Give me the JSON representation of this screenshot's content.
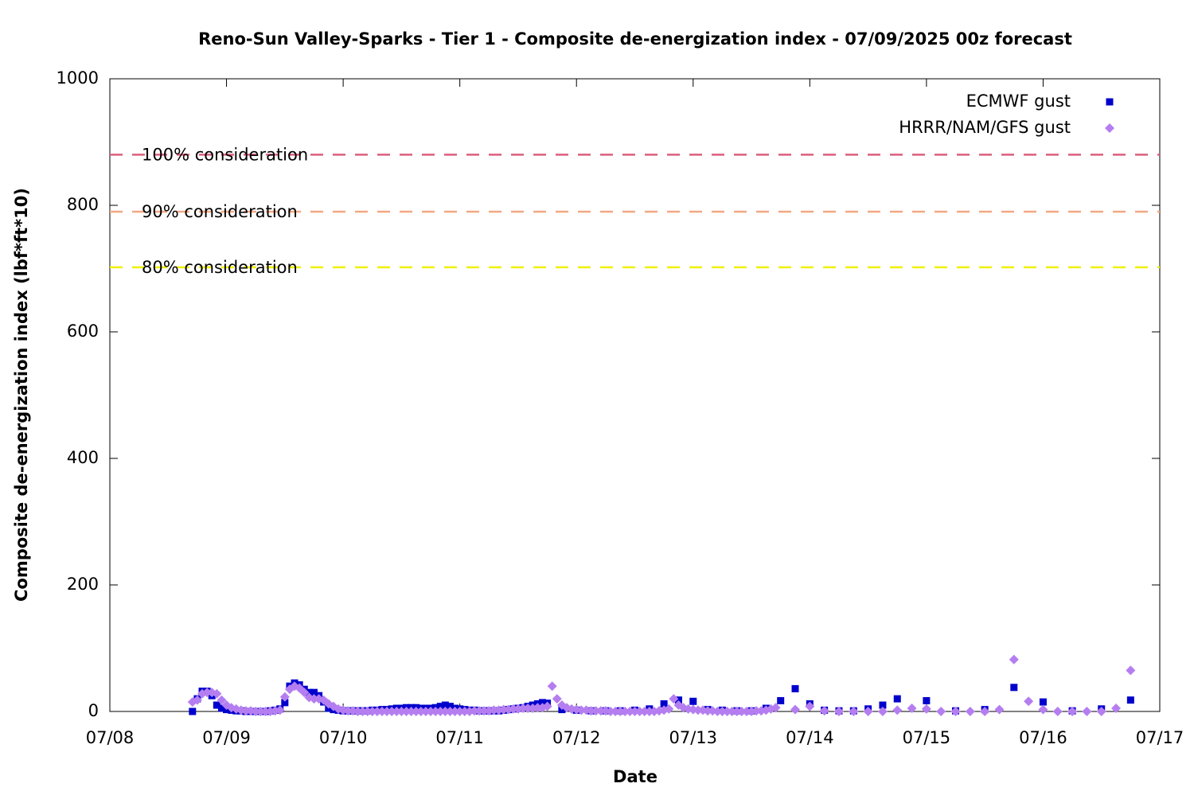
{
  "chart_data": {
    "type": "scatter",
    "title": "Reno-Sun Valley-Sparks - Tier 1 - Composite de-energization index - 07/09/2025 00z forecast",
    "x_label": "Date",
    "y_label": "Composite de-energization index (lbf*ft*10)",
    "xlim": [
      0,
      216
    ],
    "xticks": [
      {
        "value": 0,
        "label": "07/08"
      },
      {
        "value": 24,
        "label": "07/09"
      },
      {
        "value": 48,
        "label": "07/10"
      },
      {
        "value": 72,
        "label": "07/11"
      },
      {
        "value": 96,
        "label": "07/12"
      },
      {
        "value": 120,
        "label": "07/13"
      },
      {
        "value": 144,
        "label": "07/14"
      },
      {
        "value": 168,
        "label": "07/15"
      },
      {
        "value": 192,
        "label": "07/16"
      },
      {
        "value": 216,
        "label": "07/17"
      }
    ],
    "ylim": [
      0,
      1000
    ],
    "yticks": [
      0,
      200,
      400,
      600,
      800,
      1000
    ],
    "legend": "top-right",
    "thresholds": [
      {
        "label": "100% consideration",
        "value": 880,
        "color": "#dc5f7d"
      },
      {
        "label": "90% consideration",
        "value": 790,
        "color": "#f4a882"
      },
      {
        "label": "80% consideration",
        "value": 702,
        "color": "#f0f000"
      }
    ],
    "series": [
      {
        "name": "ECMWF gust",
        "color": "#0000cc",
        "marker": "square",
        "x": [
          17,
          18,
          19,
          20,
          21,
          22,
          23,
          24,
          25,
          26,
          27,
          28,
          29,
          30,
          31,
          32,
          33,
          34,
          35,
          36,
          37,
          38,
          39,
          40,
          41,
          42,
          43,
          44,
          45,
          46,
          47,
          48,
          49,
          50,
          51,
          52,
          53,
          54,
          55,
          56,
          57,
          58,
          59,
          60,
          61,
          62,
          63,
          64,
          65,
          66,
          67,
          68,
          69,
          70,
          71,
          72,
          73,
          74,
          75,
          76,
          77,
          78,
          79,
          80,
          81,
          82,
          83,
          84,
          85,
          86,
          87,
          88,
          89,
          90,
          93,
          96,
          99,
          102,
          105,
          108,
          111,
          114,
          117,
          120,
          123,
          126,
          129,
          132,
          135,
          138,
          141,
          144,
          147,
          150,
          153,
          156,
          159,
          162,
          168,
          174,
          180,
          186,
          192,
          198,
          204,
          210
        ],
        "values": [
          0,
          20,
          32,
          32,
          25,
          10,
          5,
          3,
          2,
          1,
          1,
          0,
          0,
          0,
          0,
          0,
          1,
          2,
          4,
          14,
          40,
          45,
          42,
          35,
          30,
          30,
          25,
          15,
          5,
          3,
          2,
          1,
          1,
          1,
          1,
          1,
          1,
          2,
          2,
          3,
          3,
          4,
          5,
          5,
          6,
          6,
          6,
          5,
          5,
          5,
          6,
          8,
          10,
          8,
          5,
          4,
          3,
          2,
          2,
          1,
          1,
          1,
          1,
          1,
          2,
          3,
          4,
          5,
          6,
          8,
          10,
          12,
          14,
          13,
          3,
          2,
          1,
          1,
          1,
          2,
          4,
          12,
          18,
          16,
          3,
          2,
          1,
          1,
          5,
          17,
          36,
          12,
          2,
          1,
          1,
          4,
          10,
          20,
          17,
          1,
          3,
          38,
          15,
          1,
          4,
          18
        ]
      },
      {
        "name": "HRRR/NAM/GFS gust",
        "color": "#b57ef0",
        "marker": "diamond",
        "x": [
          17,
          18,
          19,
          20,
          21,
          22,
          23,
          24,
          25,
          26,
          27,
          28,
          29,
          30,
          31,
          32,
          33,
          34,
          35,
          36,
          37,
          38,
          39,
          40,
          41,
          42,
          43,
          44,
          45,
          46,
          47,
          48,
          49,
          50,
          51,
          52,
          53,
          54,
          55,
          56,
          57,
          58,
          59,
          60,
          61,
          62,
          63,
          64,
          65,
          66,
          67,
          68,
          69,
          70,
          71,
          72,
          73,
          74,
          75,
          76,
          77,
          78,
          79,
          80,
          81,
          82,
          83,
          84,
          85,
          86,
          87,
          88,
          89,
          90,
          91,
          92,
          93,
          94,
          95,
          96,
          97,
          98,
          99,
          100,
          101,
          102,
          103,
          104,
          105,
          106,
          107,
          108,
          109,
          110,
          111,
          112,
          113,
          114,
          115,
          116,
          117,
          118,
          119,
          120,
          121,
          122,
          123,
          124,
          125,
          126,
          127,
          128,
          129,
          130,
          131,
          132,
          133,
          134,
          135,
          136,
          137,
          141,
          144,
          147,
          150,
          153,
          156,
          159,
          162,
          165,
          168,
          171,
          174,
          177,
          180,
          183,
          186,
          189,
          192,
          195,
          198,
          201,
          204,
          207,
          210
        ],
        "values": [
          15,
          18,
          28,
          30,
          30,
          28,
          18,
          10,
          6,
          4,
          2,
          1,
          1,
          0,
          0,
          0,
          0,
          1,
          2,
          23,
          35,
          40,
          37,
          30,
          22,
          20,
          20,
          18,
          12,
          8,
          4,
          2,
          1,
          1,
          0,
          0,
          0,
          0,
          0,
          0,
          0,
          0,
          0,
          0,
          0,
          0,
          0,
          0,
          0,
          0,
          0,
          0,
          0,
          0,
          0,
          0,
          0,
          0,
          1,
          1,
          1,
          1,
          2,
          2,
          3,
          3,
          4,
          4,
          5,
          5,
          5,
          6,
          6,
          8,
          40,
          20,
          10,
          6,
          4,
          3,
          2,
          2,
          1,
          1,
          1,
          1,
          0,
          0,
          0,
          0,
          0,
          0,
          0,
          0,
          0,
          0,
          1,
          2,
          4,
          20,
          10,
          6,
          4,
          3,
          2,
          2,
          1,
          1,
          0,
          0,
          0,
          0,
          0,
          0,
          0,
          0,
          1,
          1,
          2,
          4,
          6,
          3,
          8,
          1,
          0,
          0,
          0,
          0,
          2,
          5,
          4,
          0,
          0,
          0,
          0,
          3,
          82,
          16,
          3,
          0,
          0,
          0,
          0,
          5,
          65
        ]
      }
    ]
  }
}
